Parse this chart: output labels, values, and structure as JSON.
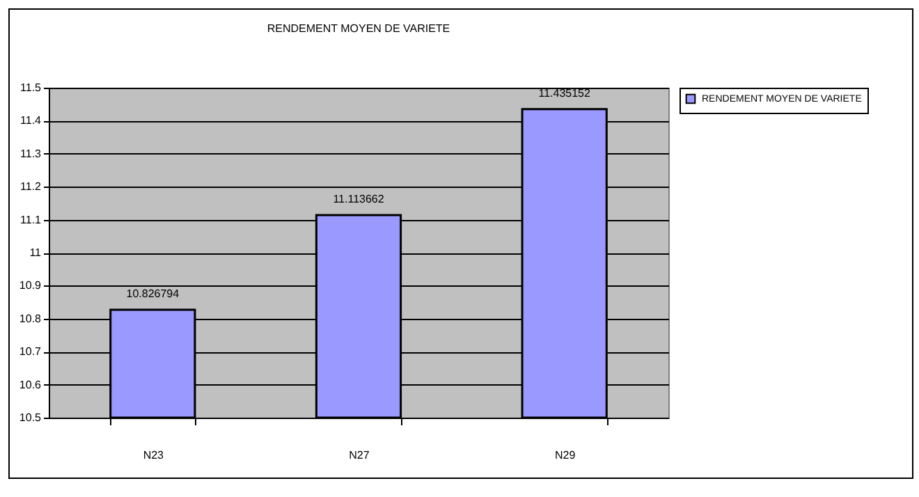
{
  "chart_data": {
    "type": "bar",
    "title": "RENDEMENT MOYEN DE VARIETE",
    "categories": [
      "N23",
      "N27",
      "N29"
    ],
    "series": [
      {
        "name": "RENDEMENT MOYEN DE VARIETE",
        "color": "#9999ff",
        "values": [
          10.826794,
          11.113662,
          11.435152
        ]
      }
    ],
    "ylim": [
      10.5,
      11.5
    ],
    "yticks": [
      10.5,
      10.6,
      10.7,
      10.8,
      10.9,
      11,
      11.1,
      11.2,
      11.3,
      11.4,
      11.5
    ],
    "grid": "y",
    "legend": "right",
    "data_labels": true
  }
}
